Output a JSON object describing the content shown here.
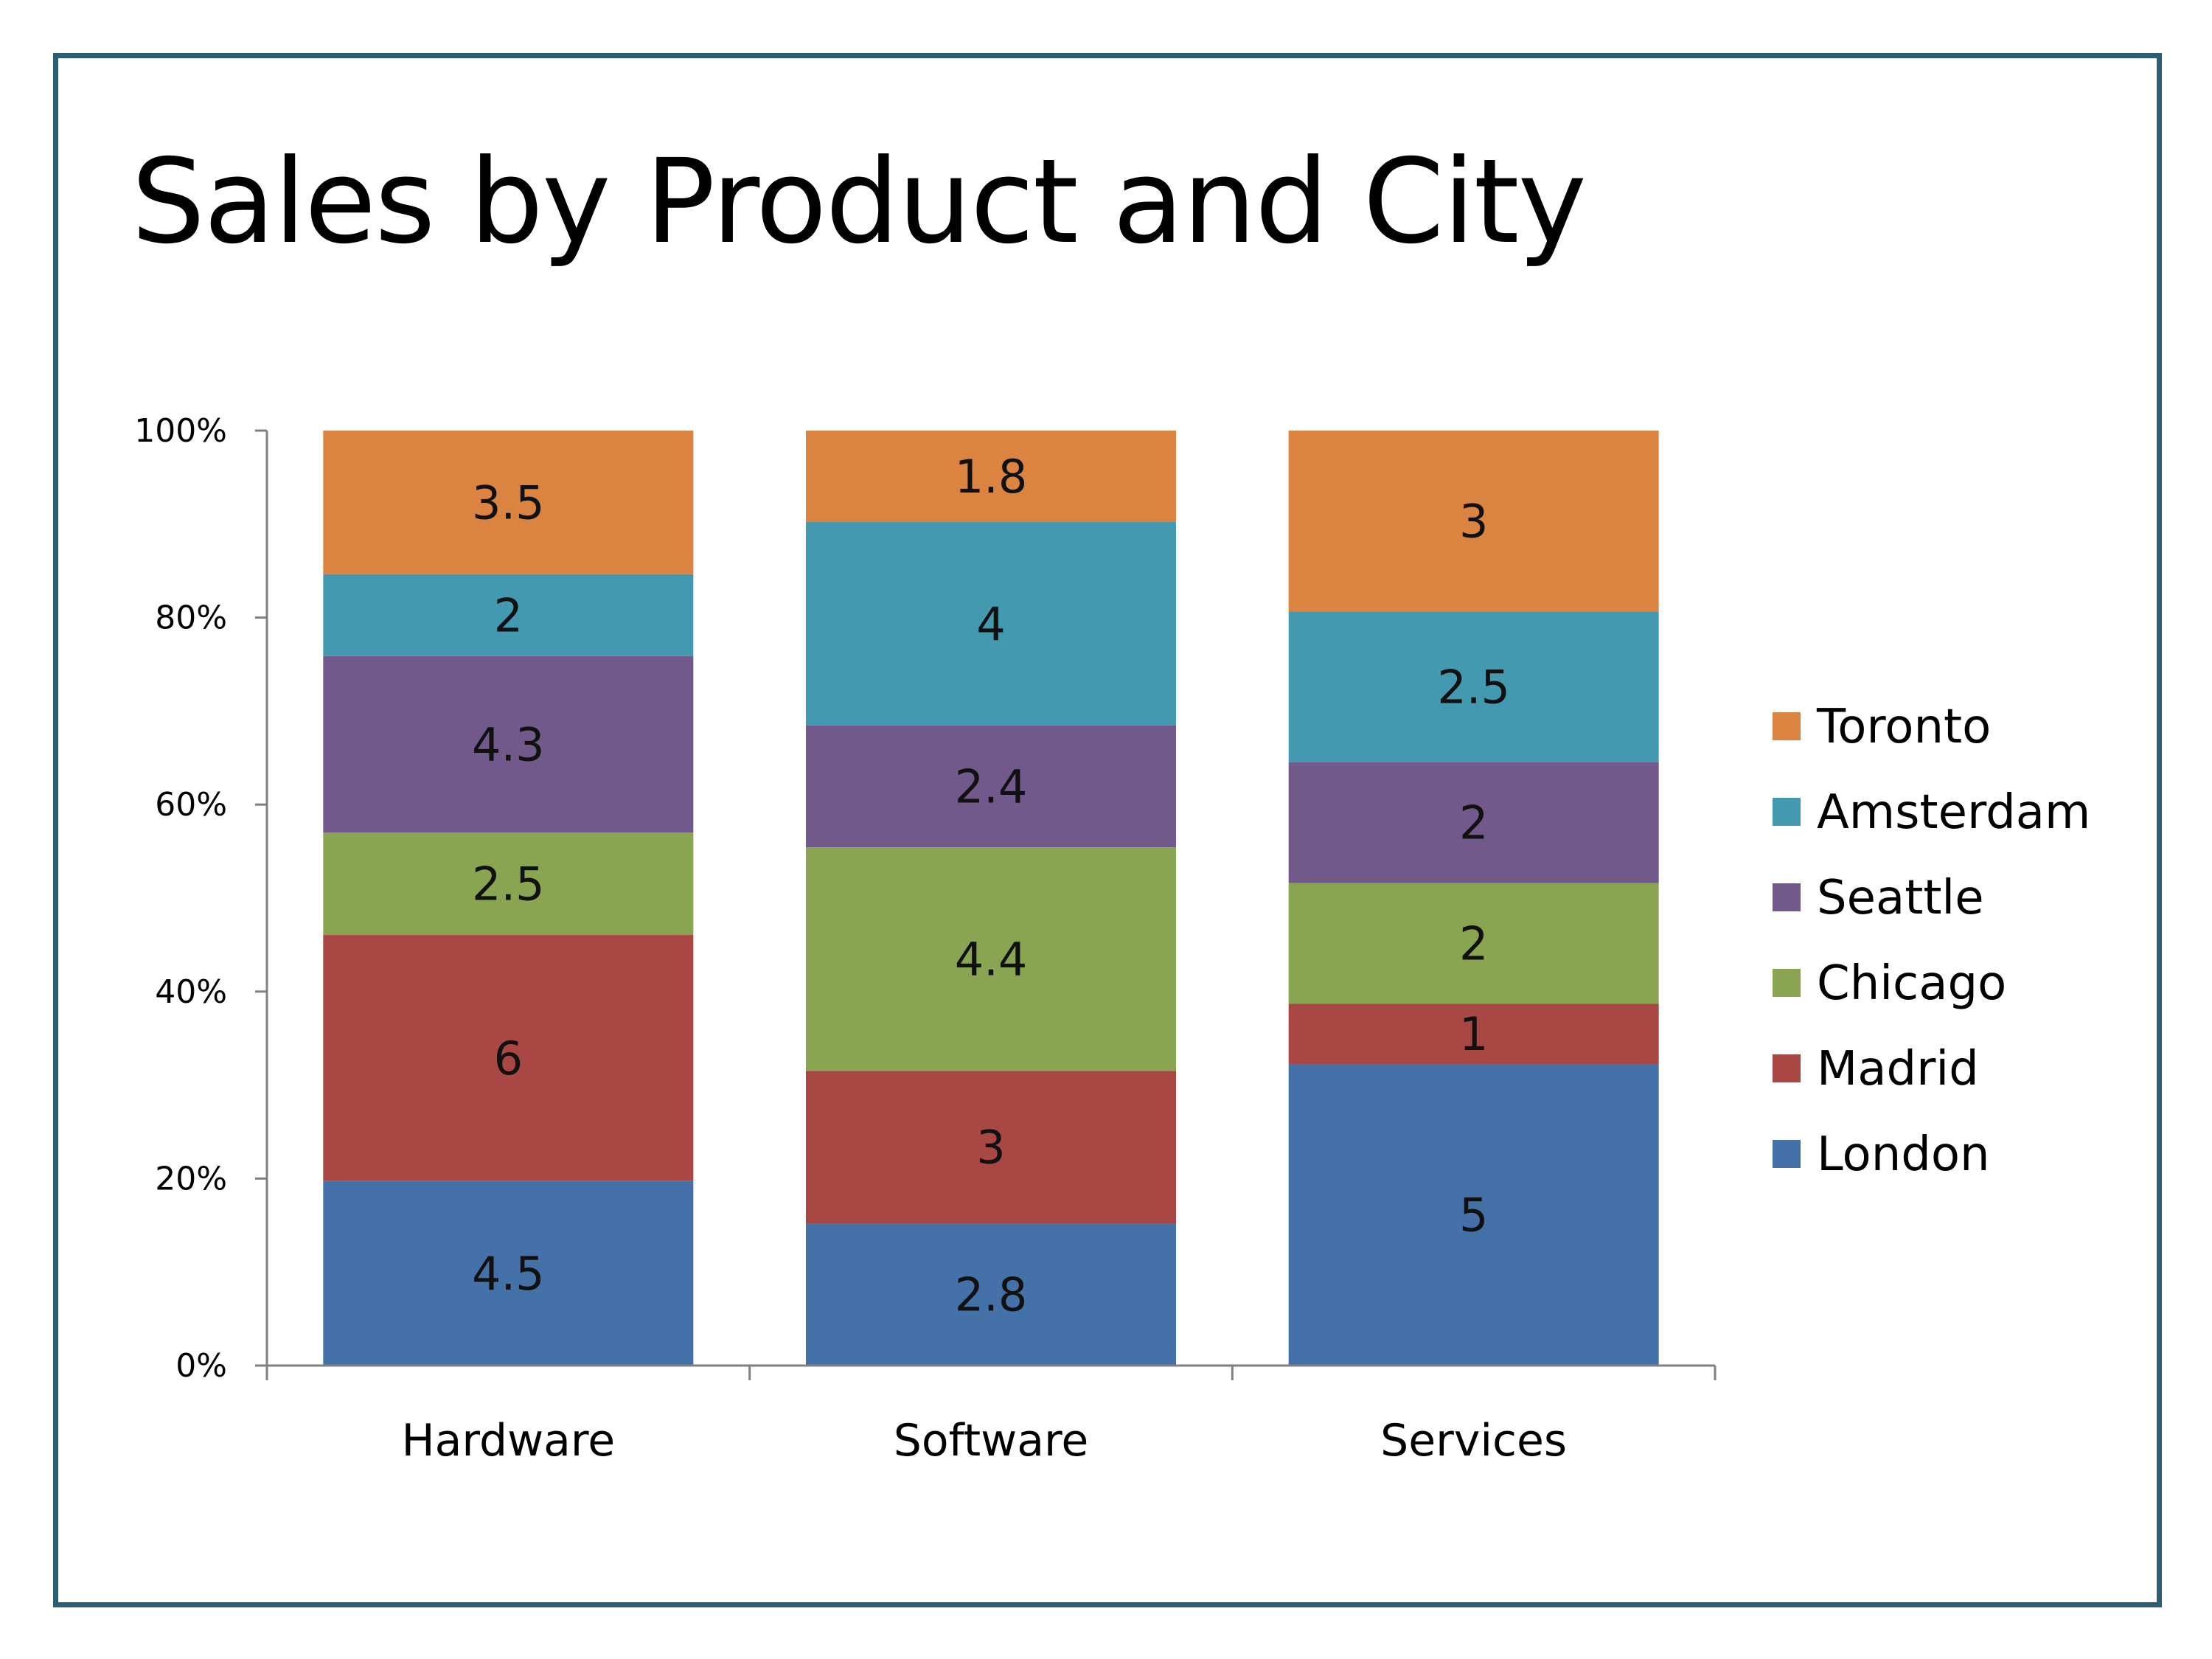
{
  "chart_data": {
    "type": "bar",
    "stacked": true,
    "normalized": true,
    "title": "Sales by Product and City",
    "xlabel": "",
    "ylabel": "",
    "categories": [
      "Hardware",
      "Software",
      "Services"
    ],
    "series": [
      {
        "name": "London",
        "color": "#4472a8",
        "values": [
          4.5,
          2.8,
          5
        ]
      },
      {
        "name": "Madrid",
        "color": "#a84744",
        "values": [
          6,
          3,
          1
        ]
      },
      {
        "name": "Chicago",
        "color": "#89a551",
        "values": [
          2.5,
          4.4,
          2
        ]
      },
      {
        "name": "Seattle",
        "color": "#72598c",
        "values": [
          4.3,
          2.4,
          2
        ]
      },
      {
        "name": "Amsterdam",
        "color": "#4399b0",
        "values": [
          2,
          4,
          2.5
        ]
      },
      {
        "name": "Toronto",
        "color": "#db8442",
        "values": [
          3.5,
          1.8,
          3
        ]
      }
    ],
    "ylim": [
      0,
      100
    ],
    "yticks": [
      "0%",
      "20%",
      "40%",
      "60%",
      "80%",
      "100%"
    ],
    "grid": false,
    "legend_position": "right"
  }
}
